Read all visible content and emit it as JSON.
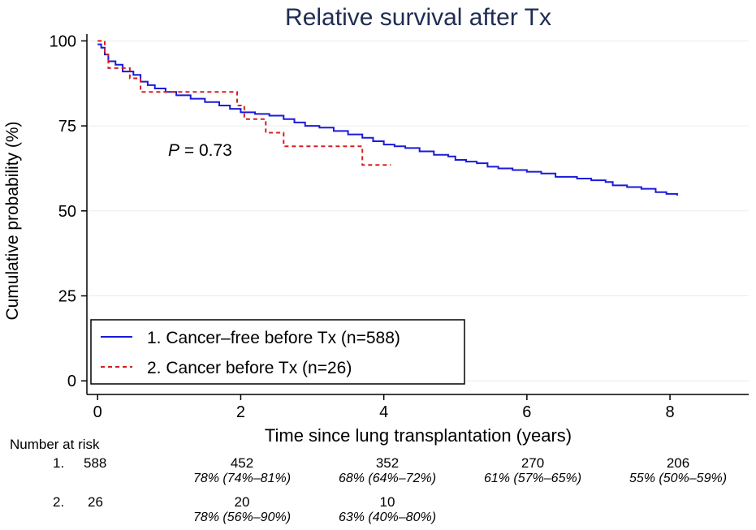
{
  "chart_data": {
    "type": "line",
    "title": "Relative survival after Tx",
    "xlabel": "Time since lung transplantation (years)",
    "ylabel": "Cumulative probability (%)",
    "xlim": [
      -0.15,
      9.1
    ],
    "ylim": [
      -4,
      102
    ],
    "xticks": [
      0,
      2,
      4,
      6,
      8
    ],
    "yticks": [
      0,
      25,
      50,
      75,
      100
    ],
    "grid": "horizontal",
    "legend_position": "bottom-left",
    "annotation": {
      "italic": "P",
      "text": " = 0.73",
      "x": 1.0,
      "y": 69
    },
    "series": [
      {
        "name": "1. Cancer–free before Tx (n=588)",
        "color": "#1a1adb",
        "style": "solid",
        "step_points": [
          [
            0,
            99
          ],
          [
            0.05,
            98
          ],
          [
            0.1,
            96
          ],
          [
            0.15,
            94
          ],
          [
            0.25,
            93
          ],
          [
            0.35,
            91
          ],
          [
            0.5,
            90
          ],
          [
            0.6,
            88
          ],
          [
            0.7,
            87
          ],
          [
            0.8,
            86
          ],
          [
            0.95,
            85
          ],
          [
            1.1,
            84
          ],
          [
            1.3,
            83
          ],
          [
            1.5,
            82
          ],
          [
            1.7,
            81
          ],
          [
            1.85,
            80
          ],
          [
            2.0,
            79
          ],
          [
            2.2,
            78.5
          ],
          [
            2.4,
            78
          ],
          [
            2.6,
            77
          ],
          [
            2.75,
            76
          ],
          [
            2.9,
            75
          ],
          [
            3.1,
            74.5
          ],
          [
            3.3,
            73.5
          ],
          [
            3.5,
            72.5
          ],
          [
            3.7,
            71.5
          ],
          [
            3.85,
            70.5
          ],
          [
            4.0,
            69.5
          ],
          [
            4.15,
            69
          ],
          [
            4.3,
            68.5
          ],
          [
            4.5,
            67.5
          ],
          [
            4.7,
            66.5
          ],
          [
            4.9,
            66
          ],
          [
            5.0,
            65
          ],
          [
            5.15,
            64.5
          ],
          [
            5.3,
            64
          ],
          [
            5.45,
            63
          ],
          [
            5.6,
            62.5
          ],
          [
            5.8,
            62
          ],
          [
            6.0,
            61.5
          ],
          [
            6.2,
            61
          ],
          [
            6.4,
            60
          ],
          [
            6.7,
            59.5
          ],
          [
            6.9,
            59
          ],
          [
            7.1,
            58.5
          ],
          [
            7.2,
            57.5
          ],
          [
            7.4,
            57
          ],
          [
            7.6,
            56.5
          ],
          [
            7.8,
            55.5
          ],
          [
            7.95,
            55
          ],
          [
            8.1,
            54.5
          ]
        ],
        "end_x": 8.1
      },
      {
        "name": "2. Cancer before Tx (n=26)",
        "color": "#d42020",
        "style": "dashed",
        "step_points": [
          [
            0,
            100
          ],
          [
            0.1,
            96
          ],
          [
            0.15,
            92
          ],
          [
            0.45,
            89
          ],
          [
            0.6,
            85
          ],
          [
            1.95,
            81
          ],
          [
            2.05,
            77
          ],
          [
            2.35,
            73
          ],
          [
            2.6,
            69
          ],
          [
            3.7,
            63.5
          ]
        ],
        "end_x": 4.1
      }
    ],
    "risk_table": {
      "header": "Number at risk",
      "rows": [
        {
          "label": "1.",
          "start": "588",
          "counts": [
            "452",
            "352",
            "270",
            "206"
          ],
          "survival": [
            "78% (74%–81%)",
            "68% (64%–72%)",
            "61% (57%–65%)",
            "55% (50%–59%)"
          ]
        },
        {
          "label": "2.",
          "start": "26",
          "counts": [
            "20",
            "10"
          ],
          "survival": [
            "78% (56%–90%)",
            "63% (40%–80%)"
          ]
        }
      ],
      "count_years": [
        2,
        4,
        6,
        8
      ]
    }
  }
}
